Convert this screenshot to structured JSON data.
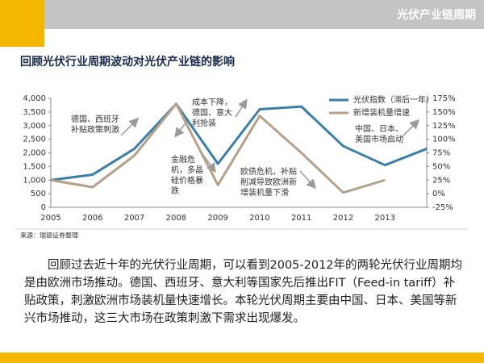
{
  "header": {
    "title": "光伏产业链周期"
  },
  "heading": "回顾光伏行业周期波动对光伏产业链的影响",
  "chart_data": {
    "type": "line",
    "categories": [
      "2005",
      "2006",
      "2007",
      "2008",
      "2009",
      "2010",
      "2011",
      "2012",
      "2013",
      null
    ],
    "series": [
      {
        "name": "光伏指数（滞后一年）",
        "color": "#3b7ea6",
        "values": [
          1000,
          1200,
          2150,
          3800,
          1600,
          3600,
          3700,
          2250,
          1550,
          2150
        ]
      },
      {
        "name": "新增装机量增速",
        "color": "#b5a08a",
        "axis": "y2",
        "values": [
          25,
          12,
          70,
          165,
          16,
          143,
          75,
          2,
          25,
          null
        ]
      }
    ],
    "ylim": [
      0,
      4000
    ],
    "yticks": [
      0,
      500,
      {
        "value": 1000,
        "label": "1,000"
      },
      {
        "value": 1500,
        "label": "1,500"
      },
      {
        "value": 2000,
        "label": "2,000"
      },
      {
        "value": 2500,
        "label": "2,500"
      },
      {
        "value": 3000,
        "label": "3,000"
      },
      {
        "value": 3500,
        "label": "3,500"
      },
      {
        "value": 4000,
        "label": "4,000"
      }
    ],
    "y2lim": [
      -25,
      175
    ],
    "y2ticks": [
      {
        "value": -25,
        "label": "-25%"
      },
      {
        "value": 0,
        "label": "0%"
      },
      {
        "value": 25,
        "label": "25%"
      },
      {
        "value": 50,
        "label": "50%"
      },
      {
        "value": 75,
        "label": "75%"
      },
      {
        "value": 100,
        "label": "100%"
      },
      {
        "value": 125,
        "label": "125%"
      },
      {
        "value": 150,
        "label": "150%"
      },
      {
        "value": 175,
        "label": "175%"
      }
    ],
    "legend": "upper right",
    "annotations": [
      {
        "lines": [
          "德国、西班牙",
          "补贴政策刺激"
        ]
      },
      {
        "lines": [
          "成本下降，",
          "德国、意大",
          "利抢装"
        ]
      },
      {
        "lines": [
          "金融危",
          "机，多晶",
          "硅价格暴",
          "跌"
        ]
      },
      {
        "lines": [
          "欧债危机，补贴",
          "削减导致欧洲新",
          "增装机量下滑"
        ]
      },
      {
        "lines": [
          "中国、日本、",
          "美国市场启动"
        ]
      }
    ]
  },
  "source": "来源：瑞银证券整理",
  "body": "回顾过去近十年的光伏行业周期，可以看到2005-2012年的两轮光伏行业周期均是由欧洲市场推动。德国、西班牙、意大利等国家先后推出FIT（Feed-in tariff）补贴政策，刺激欧洲市场装机量快速增长。本轮光伏周期主要由中国、日本、美国等新兴市场推动，这三大市场在政策刺激下需求出现爆发。"
}
